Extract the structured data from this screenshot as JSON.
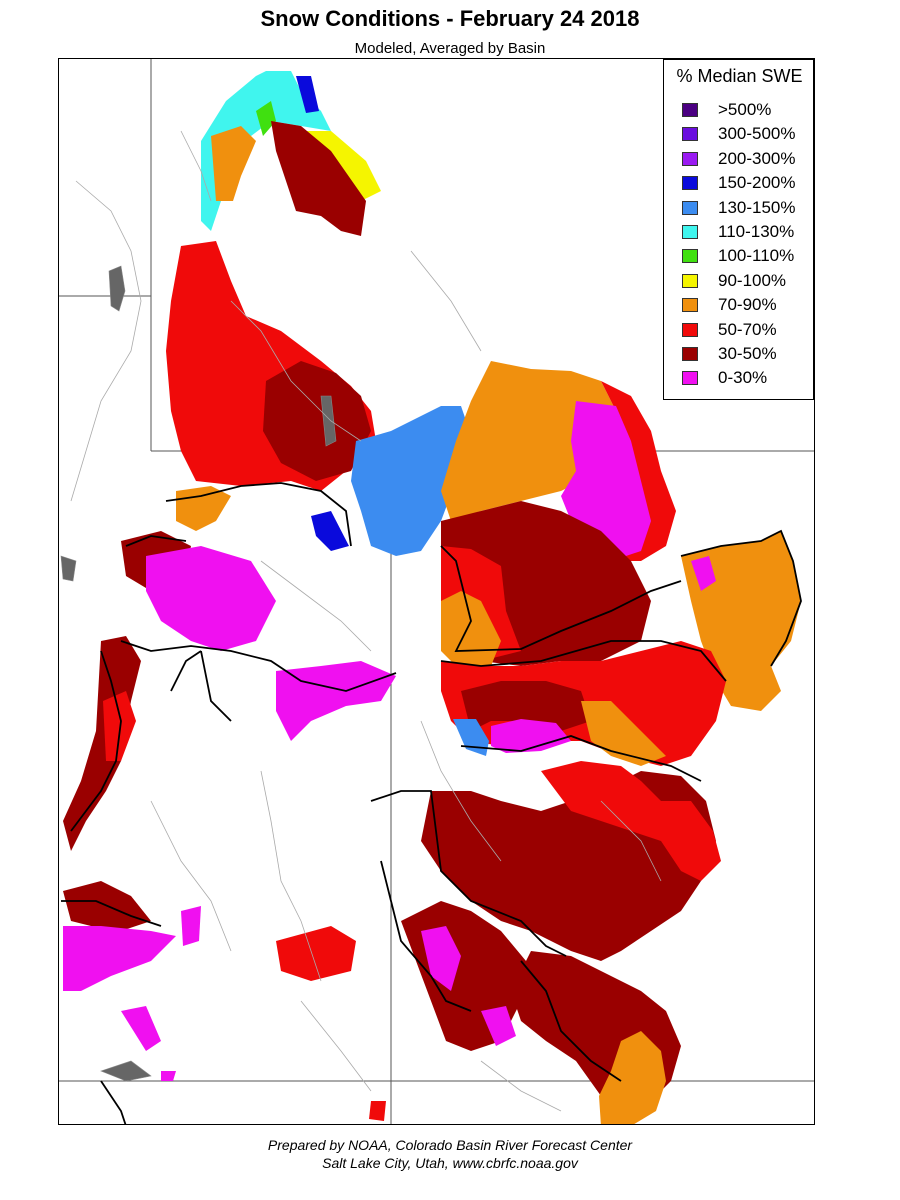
{
  "title": "Snow Conditions - February 24 2018",
  "subtitle": "Modeled, Averaged by Basin",
  "legend": {
    "title": "% Median SWE",
    "items": [
      {
        "label": ">500%",
        "color": "#4b0082"
      },
      {
        "label": "300-500%",
        "color": "#6a0dde"
      },
      {
        "label": "200-300%",
        "color": "#9a1af2"
      },
      {
        "label": "150-200%",
        "color": "#0a0adc"
      },
      {
        "label": "130-150%",
        "color": "#3c8cf0"
      },
      {
        "label": "110-130%",
        "color": "#40f5ee"
      },
      {
        "label": "100-110%",
        "color": "#40e010"
      },
      {
        "label": "90-100%",
        "color": "#f5f500"
      },
      {
        "label": "70-90%",
        "color": "#f0900e"
      },
      {
        "label": "50-70%",
        "color": "#f00a0a"
      },
      {
        "label": "30-50%",
        "color": "#9a0000"
      },
      {
        "label": "0-30%",
        "color": "#f010f0"
      }
    ]
  },
  "footer": {
    "line1": "Prepared by NOAA, Colorado Basin River Forecast Center",
    "line2": "Salt Lake City, Utah, www.cbrfc.noaa.gov"
  }
}
